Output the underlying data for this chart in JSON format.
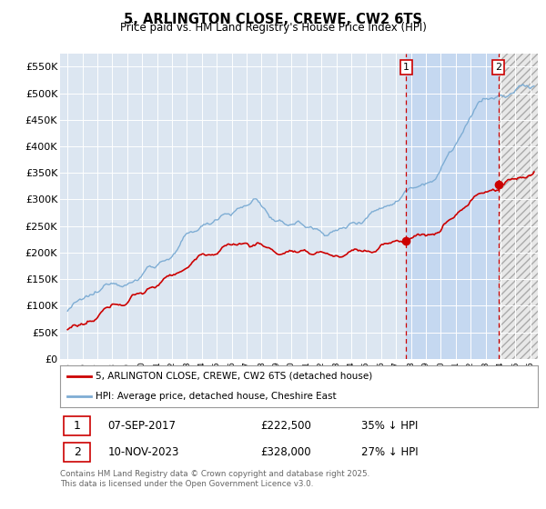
{
  "title": "5, ARLINGTON CLOSE, CREWE, CW2 6TS",
  "subtitle": "Price paid vs. HM Land Registry's House Price Index (HPI)",
  "xlim": [
    1994.5,
    2026.5
  ],
  "ylim": [
    0,
    575000
  ],
  "yticks": [
    0,
    50000,
    100000,
    150000,
    200000,
    250000,
    300000,
    350000,
    400000,
    450000,
    500000,
    550000
  ],
  "ytick_labels": [
    "£0",
    "£50K",
    "£100K",
    "£150K",
    "£200K",
    "£250K",
    "£300K",
    "£350K",
    "£400K",
    "£450K",
    "£500K",
    "£550K"
  ],
  "hpi_color": "#7eadd4",
  "price_color": "#cc0000",
  "sale1_x": 2017.685,
  "sale1_y": 222500,
  "sale2_x": 2023.86,
  "sale2_y": 328000,
  "sale1_label": "07-SEP-2017",
  "sale1_price": "£222,500",
  "sale1_hpi": "35% ↓ HPI",
  "sale2_label": "10-NOV-2023",
  "sale2_price": "£328,000",
  "sale2_hpi": "27% ↓ HPI",
  "legend_line1": "5, ARLINGTON CLOSE, CREWE, CW2 6TS (detached house)",
  "legend_line2": "HPI: Average price, detached house, Cheshire East",
  "footer": "Contains HM Land Registry data © Crown copyright and database right 2025.\nThis data is licensed under the Open Government Licence v3.0.",
  "background_color": "#ffffff",
  "plot_bg_color": "#dce6f1",
  "shade_between_color": "#c5d8f0",
  "shade_after_color": "#d0d0d0"
}
